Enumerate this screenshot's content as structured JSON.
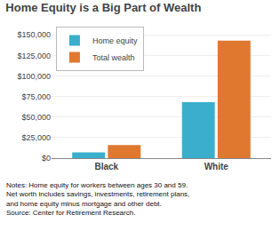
{
  "chart_data": {
    "type": "bar",
    "title": "Home Equity is a Big Part of Wealth",
    "categories": [
      "Black",
      "White"
    ],
    "series": [
      {
        "name": "Home equity",
        "color": "#3aaecc",
        "values": [
          7000,
          68000
        ]
      },
      {
        "name": "Total wealth",
        "color": "#e07830",
        "values": [
          16000,
          143000
        ]
      }
    ],
    "ylim": [
      0,
      160000
    ],
    "yticks": [
      {
        "value": 0,
        "label": "$0"
      },
      {
        "value": 25000,
        "label": "$25,000"
      },
      {
        "value": 50000,
        "label": "$50,000"
      },
      {
        "value": 75000,
        "label": "$75,000"
      },
      {
        "value": 100000,
        "label": "$100,000"
      },
      {
        "value": 125000,
        "label": "$125,000"
      },
      {
        "value": 150000,
        "label": "$150,000"
      }
    ],
    "grid": true,
    "legend": "upper left",
    "annotations": [
      "Notes: Home equity for workers between ages 30 and 59.",
      "Net worth includes savings, investments, retirement plans,",
      "and home equity minus mortgage and other debt.",
      "Source: Center for Retirement Research."
    ]
  }
}
